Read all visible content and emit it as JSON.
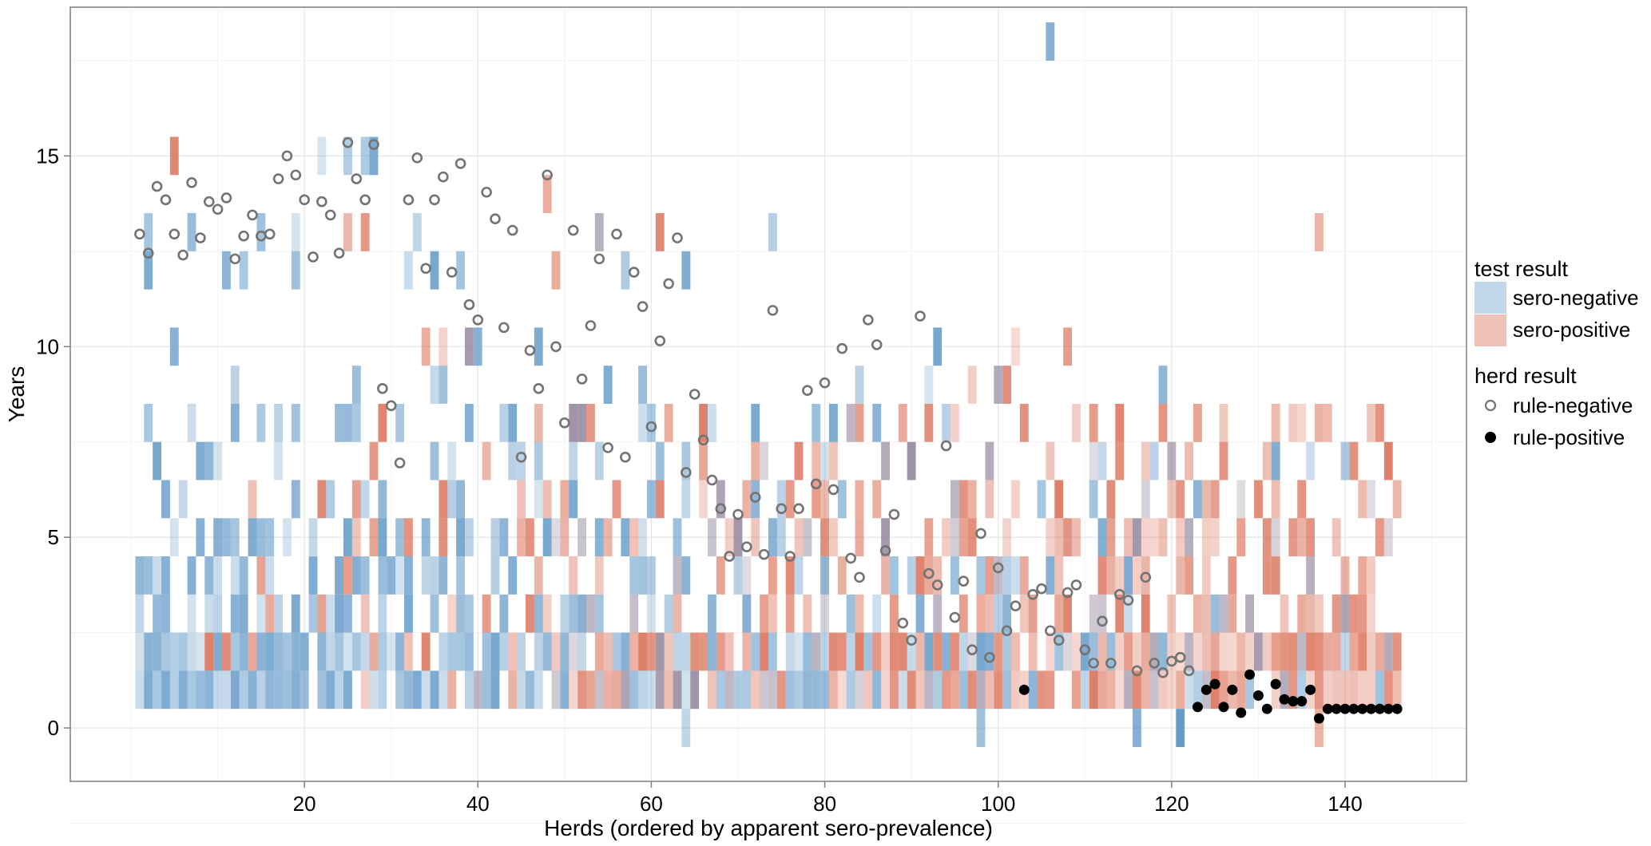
{
  "chart_data": {
    "type": "heatmap",
    "title": "",
    "xlabel": "Herds (ordered by apparent sero-prevalence)",
    "ylabel": "Years",
    "xlim": [
      -7,
      154
    ],
    "ylim": [
      -1.4,
      18.9
    ],
    "x_ticks": [
      20,
      40,
      60,
      80,
      100,
      120,
      140
    ],
    "y_ticks": [
      0,
      5,
      10,
      15
    ],
    "grid": true,
    "legend_position": "right",
    "colors": {
      "sero_negative": "#5f97c6",
      "sero_positive": "#d8694f",
      "mixed": "#8a7c95",
      "panel_background": "#ffffff",
      "grid": "#e6e6e6",
      "rule_negative_stroke": "#737373",
      "rule_positive_fill": "#000000"
    },
    "legend": {
      "test_result": {
        "title": "test result",
        "items": [
          {
            "label": "sero-negative",
            "color": "#c0d8ea"
          },
          {
            "label": "sero-positive",
            "color": "#efc0b6"
          }
        ]
      },
      "herd_result": {
        "title": "herd result",
        "items": [
          {
            "label": "rule-negative",
            "marker": "open-circle"
          },
          {
            "label": "rule-positive",
            "marker": "filled-circle"
          }
        ]
      }
    },
    "herds": 146,
    "year_bins": [
      1,
      2,
      3,
      4,
      5,
      6,
      7,
      8,
      9,
      10,
      12,
      13,
      15
    ],
    "bin_step": 1,
    "bar_width": 1,
    "extra_cells": [
      {
        "herd": 106,
        "lo": 17.5,
        "hi": 18.5,
        "kind": "neg",
        "op": 0.75
      },
      {
        "herd": 28,
        "lo": 14.5,
        "hi": 15.5,
        "kind": "neg",
        "op": 0.5
      },
      {
        "herd": 74,
        "lo": 12.5,
        "hi": 13.5,
        "kind": "neg",
        "op": 0.45
      },
      {
        "herd": 33,
        "lo": 12.5,
        "hi": 13.5,
        "kind": "neg",
        "op": 0.4
      },
      {
        "herd": 48,
        "lo": 13.5,
        "hi": 14.5,
        "kind": "pos",
        "op": 0.55
      },
      {
        "herd": 137,
        "lo": 12.5,
        "hi": 13.5,
        "kind": "pos",
        "op": 0.5
      },
      {
        "herd": 64,
        "lo": -0.5,
        "hi": 0.5,
        "kind": "neg",
        "op": 0.4
      },
      {
        "herd": 98,
        "lo": -0.5,
        "hi": 0.5,
        "kind": "neg",
        "op": 0.6
      },
      {
        "herd": 116,
        "lo": -0.5,
        "hi": 0.5,
        "kind": "neg",
        "op": 0.75
      },
      {
        "herd": 121,
        "lo": -0.5,
        "hi": 0.5,
        "kind": "neg",
        "op": 0.95
      },
      {
        "herd": 137,
        "lo": -0.5,
        "hi": 0.5,
        "kind": "pos",
        "op": 0.5
      }
    ],
    "rule_negative_points": [
      [
        1,
        12.95
      ],
      [
        2,
        12.45
      ],
      [
        3,
        14.2
      ],
      [
        4,
        13.85
      ],
      [
        5,
        12.95
      ],
      [
        6,
        12.4
      ],
      [
        7,
        14.3
      ],
      [
        8,
        12.85
      ],
      [
        9,
        13.8
      ],
      [
        10,
        13.6
      ],
      [
        11,
        13.9
      ],
      [
        12,
        12.3
      ],
      [
        13,
        12.9
      ],
      [
        14,
        13.45
      ],
      [
        15,
        12.9
      ],
      [
        16,
        12.95
      ],
      [
        17,
        14.4
      ],
      [
        18,
        15.0
      ],
      [
        19,
        14.5
      ],
      [
        20,
        13.85
      ],
      [
        21,
        12.35
      ],
      [
        22,
        13.8
      ],
      [
        23,
        13.45
      ],
      [
        24,
        12.45
      ],
      [
        25,
        15.35
      ],
      [
        26,
        14.4
      ],
      [
        27,
        13.85
      ],
      [
        28,
        15.3
      ],
      [
        29,
        8.9
      ],
      [
        30,
        8.45
      ],
      [
        31,
        6.95
      ],
      [
        32,
        13.85
      ],
      [
        33,
        14.95
      ],
      [
        34,
        12.05
      ],
      [
        35,
        13.85
      ],
      [
        36,
        14.45
      ],
      [
        37,
        11.95
      ],
      [
        38,
        14.8
      ],
      [
        39,
        11.1
      ],
      [
        40,
        10.7
      ],
      [
        41,
        14.05
      ],
      [
        42,
        13.35
      ],
      [
        43,
        10.5
      ],
      [
        44,
        13.05
      ],
      [
        45,
        7.1
      ],
      [
        46,
        9.9
      ],
      [
        47,
        8.9
      ],
      [
        48,
        14.5
      ],
      [
        49,
        10.0
      ],
      [
        50,
        8.0
      ],
      [
        51,
        13.05
      ],
      [
        52,
        9.15
      ],
      [
        53,
        10.55
      ],
      [
        54,
        12.3
      ],
      [
        55,
        7.35
      ],
      [
        56,
        12.95
      ],
      [
        57,
        7.1
      ],
      [
        58,
        11.95
      ],
      [
        59,
        11.05
      ],
      [
        60,
        7.9
      ],
      [
        61,
        10.15
      ],
      [
        62,
        11.65
      ],
      [
        63,
        12.85
      ],
      [
        64,
        6.7
      ],
      [
        65,
        8.75
      ],
      [
        66,
        7.55
      ],
      [
        67,
        6.5
      ],
      [
        68,
        5.75
      ],
      [
        69,
        4.5
      ],
      [
        70,
        5.6
      ],
      [
        71,
        4.75
      ],
      [
        72,
        6.05
      ],
      [
        73,
        4.55
      ],
      [
        74,
        10.95
      ],
      [
        75,
        5.75
      ],
      [
        76,
        4.5
      ],
      [
        77,
        5.75
      ],
      [
        78,
        8.85
      ],
      [
        79,
        6.4
      ],
      [
        80,
        9.05
      ],
      [
        81,
        6.25
      ],
      [
        82,
        9.95
      ],
      [
        83,
        4.45
      ],
      [
        84,
        3.95
      ],
      [
        85,
        10.7
      ],
      [
        86,
        10.05
      ],
      [
        87,
        4.65
      ],
      [
        88,
        5.6
      ],
      [
        89,
        2.75
      ],
      [
        90,
        2.3
      ],
      [
        91,
        10.8
      ],
      [
        92,
        4.05
      ],
      [
        93,
        3.75
      ],
      [
        94,
        7.4
      ],
      [
        95,
        2.9
      ],
      [
        96,
        3.85
      ],
      [
        97,
        2.05
      ],
      [
        98,
        5.1
      ],
      [
        99,
        1.85
      ],
      [
        100,
        4.2
      ],
      [
        101,
        2.55
      ],
      [
        102,
        3.2
      ],
      [
        104,
        3.5
      ],
      [
        105,
        3.65
      ],
      [
        106,
        2.55
      ],
      [
        107,
        2.3
      ],
      [
        108,
        3.55
      ],
      [
        109,
        3.75
      ],
      [
        110,
        2.05
      ],
      [
        111,
        1.7
      ],
      [
        112,
        2.8
      ],
      [
        113,
        1.7
      ],
      [
        114,
        3.5
      ],
      [
        115,
        3.35
      ],
      [
        116,
        1.5
      ],
      [
        117,
        3.95
      ],
      [
        118,
        1.7
      ],
      [
        119,
        1.45
      ],
      [
        120,
        1.75
      ],
      [
        121,
        1.85
      ],
      [
        122,
        1.5
      ]
    ],
    "rule_positive_points": [
      [
        103,
        1.0
      ],
      [
        123,
        0.55
      ],
      [
        124,
        1.0
      ],
      [
        125,
        1.15
      ],
      [
        126,
        0.55
      ],
      [
        127,
        1.0
      ],
      [
        128,
        0.4
      ],
      [
        129,
        1.4
      ],
      [
        130,
        0.85
      ],
      [
        131,
        0.5
      ],
      [
        132,
        1.15
      ],
      [
        133,
        0.75
      ],
      [
        134,
        0.7
      ],
      [
        135,
        0.7
      ],
      [
        136,
        1.0
      ],
      [
        137,
        0.25
      ],
      [
        138,
        0.5
      ],
      [
        139,
        0.5
      ],
      [
        140,
        0.5
      ],
      [
        141,
        0.5
      ],
      [
        142,
        0.5
      ],
      [
        143,
        0.5
      ],
      [
        144,
        0.5
      ],
      [
        145,
        0.5
      ],
      [
        146,
        0.5
      ]
    ]
  }
}
